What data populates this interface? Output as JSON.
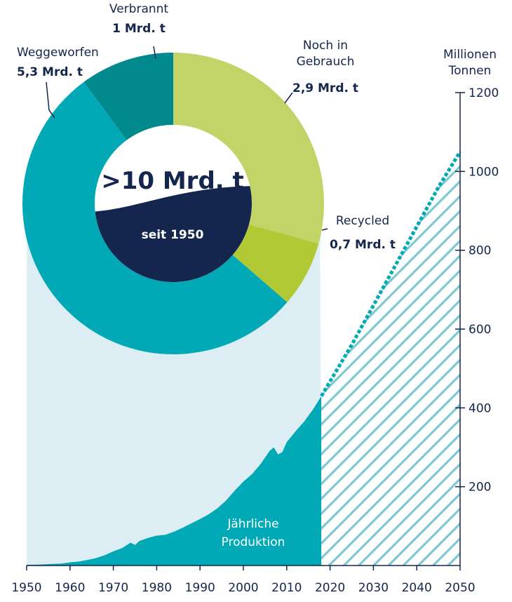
{
  "chart_data": [
    {
      "type": "area",
      "series_label": "Jährliche Produktion",
      "ylabel": [
        "Millionen",
        "Tonnen"
      ],
      "x_ticks": [
        "1950",
        "1960",
        "1970",
        "1980",
        "1990",
        "2000",
        "2010",
        "2020",
        "2030",
        "2040",
        "2050"
      ],
      "y_ticks": [
        "200",
        "400",
        "600",
        "800",
        "1000",
        "1200"
      ],
      "xlim": [
        1950,
        2050
      ],
      "ylim": [
        0,
        1200
      ],
      "actual": {
        "x": [
          1950,
          1952,
          1954,
          1956,
          1958,
          1960,
          1962,
          1964,
          1966,
          1968,
          1970,
          1972,
          1974,
          1975,
          1976,
          1978,
          1980,
          1982,
          1984,
          1986,
          1988,
          1990,
          1992,
          1994,
          1996,
          1998,
          2000,
          2002,
          2004,
          2006,
          2007,
          2008,
          2009,
          2010,
          2012,
          2014,
          2016,
          2018
        ],
        "y": [
          2,
          2,
          3,
          4,
          5,
          8,
          10,
          14,
          19,
          26,
          36,
          44,
          58,
          52,
          62,
          70,
          76,
          78,
          86,
          96,
          107,
          118,
          130,
          145,
          165,
          190,
          213,
          232,
          258,
          290,
          300,
          282,
          288,
          313,
          340,
          365,
          395,
          430
        ]
      },
      "projection": {
        "x": [
          2018,
          2025,
          2030,
          2035,
          2040,
          2045,
          2050
        ],
        "y": [
          430,
          560,
          660,
          760,
          860,
          960,
          1050
        ]
      },
      "colors": {
        "actual": "#00a9b5",
        "projection_hatch": "#7cc9cf",
        "background_area": "#dcedf3",
        "axis": "#14254e"
      }
    },
    {
      "type": "pie",
      "variant": "donut",
      "center_value": ">10 Mrd. t",
      "center_sub": "seit 1950",
      "slices": [
        {
          "name": "Noch in Gebrauch",
          "label_lines": [
            "Noch in",
            "Gebrauch"
          ],
          "value": 2.9,
          "value_label": "2,9 Mrd. t",
          "color": "#c2d468"
        },
        {
          "name": "Recycled",
          "label_lines": [
            "Recycled"
          ],
          "value": 0.7,
          "value_label": "0,7 Mrd. t",
          "color": "#b1c935"
        },
        {
          "name": "Weggeworfen",
          "label_lines": [
            "Weggeworfen"
          ],
          "value": 5.3,
          "value_label": "5,3 Mrd. t",
          "color": "#00a9b5"
        },
        {
          "name": "Verbrannt",
          "label_lines": [
            "Verbrannt"
          ],
          "value": 1,
          "value_label": "1 Mrd. t",
          "color": "#008a8e"
        }
      ],
      "colors": {
        "center_top": "#ffffff",
        "center_bottom": "#14254e"
      }
    }
  ]
}
